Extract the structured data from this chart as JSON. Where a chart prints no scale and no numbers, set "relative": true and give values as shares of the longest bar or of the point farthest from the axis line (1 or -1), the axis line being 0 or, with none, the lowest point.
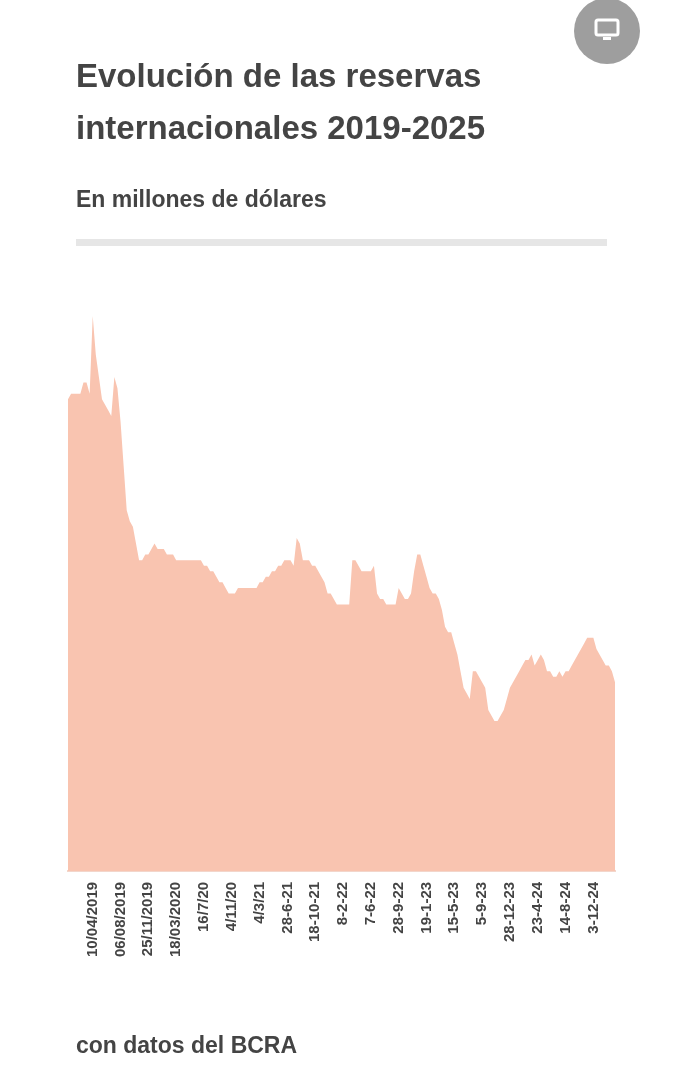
{
  "chart_data": {
    "type": "area",
    "title": "Evolución de las reservas internacionales 2019-2025",
    "subtitle": "En millones de dólares",
    "relative": true,
    "color": "#f9c4b0",
    "categories": [
      null,
      null,
      null,
      null,
      null,
      null,
      null,
      null,
      "10/04/2019",
      null,
      null,
      null,
      null,
      null,
      null,
      null,
      null,
      "06/08/2019",
      null,
      null,
      null,
      null,
      null,
      null,
      null,
      null,
      "25/11/2019",
      null,
      null,
      null,
      null,
      null,
      null,
      null,
      null,
      "18/03/2020",
      null,
      null,
      null,
      null,
      null,
      null,
      null,
      null,
      "16/7/20",
      null,
      null,
      null,
      null,
      null,
      null,
      null,
      null,
      "4/11/20",
      null,
      null,
      null,
      null,
      null,
      null,
      null,
      null,
      "4/3/21",
      null,
      null,
      null,
      null,
      null,
      null,
      null,
      null,
      "28-6-21",
      null,
      null,
      null,
      null,
      null,
      null,
      null,
      null,
      "18-10-21",
      null,
      null,
      null,
      null,
      null,
      null,
      null,
      null,
      "8-2-22",
      null,
      null,
      null,
      null,
      null,
      null,
      null,
      null,
      "7-6-22",
      null,
      null,
      null,
      null,
      null,
      null,
      null,
      null,
      "28-9-22",
      null,
      null,
      null,
      null,
      null,
      null,
      null,
      null,
      "19-1-23",
      null,
      null,
      null,
      null,
      null,
      null,
      null,
      null,
      "15-5-23",
      null,
      null,
      null,
      null,
      null,
      null,
      null,
      null,
      "5-9-23",
      null,
      null,
      null,
      null,
      null,
      null,
      null,
      null,
      "28-12-23",
      null,
      null,
      null,
      null,
      null,
      null,
      null,
      null,
      "23-4-24",
      null,
      null,
      null,
      null,
      null,
      null,
      null,
      null,
      "14-8-24",
      null,
      null,
      null,
      null,
      null,
      null,
      null,
      null,
      "3-12-24",
      null,
      null,
      null,
      null,
      null,
      null,
      null
    ],
    "values": [
      0.85,
      0.86,
      0.86,
      0.86,
      0.86,
      0.88,
      0.88,
      0.86,
      1.0,
      0.93,
      0.89,
      0.85,
      0.84,
      0.83,
      0.82,
      0.89,
      0.87,
      0.81,
      0.73,
      0.65,
      0.63,
      0.62,
      0.59,
      0.56,
      0.56,
      0.57,
      0.57,
      0.58,
      0.59,
      0.58,
      0.58,
      0.58,
      0.57,
      0.57,
      0.57,
      0.56,
      0.56,
      0.56,
      0.56,
      0.56,
      0.56,
      0.56,
      0.56,
      0.56,
      0.55,
      0.55,
      0.54,
      0.54,
      0.53,
      0.52,
      0.52,
      0.51,
      0.5,
      0.5,
      0.5,
      0.51,
      0.51,
      0.51,
      0.51,
      0.51,
      0.51,
      0.51,
      0.52,
      0.52,
      0.53,
      0.53,
      0.54,
      0.54,
      0.55,
      0.55,
      0.56,
      0.56,
      0.56,
      0.55,
      0.6,
      0.59,
      0.56,
      0.56,
      0.56,
      0.55,
      0.55,
      0.54,
      0.53,
      0.52,
      0.5,
      0.5,
      0.49,
      0.48,
      0.48,
      0.48,
      0.48,
      0.48,
      0.56,
      0.56,
      0.55,
      0.54,
      0.54,
      0.54,
      0.54,
      0.55,
      0.5,
      0.49,
      0.49,
      0.48,
      0.48,
      0.48,
      0.48,
      0.51,
      0.5,
      0.49,
      0.49,
      0.5,
      0.54,
      0.57,
      0.57,
      0.55,
      0.53,
      0.51,
      0.5,
      0.5,
      0.49,
      0.47,
      0.44,
      0.43,
      0.43,
      0.41,
      0.39,
      0.36,
      0.33,
      0.32,
      0.31,
      0.36,
      0.36,
      0.35,
      0.34,
      0.33,
      0.29,
      0.28,
      0.27,
      0.27,
      0.28,
      0.29,
      0.31,
      0.33,
      0.34,
      0.35,
      0.36,
      0.37,
      0.38,
      0.38,
      0.39,
      0.37,
      0.38,
      0.39,
      0.38,
      0.36,
      0.36,
      0.35,
      0.35,
      0.36,
      0.35,
      0.36,
      0.36,
      0.37,
      0.38,
      0.39,
      0.4,
      0.41,
      0.42,
      0.42,
      0.42,
      0.4,
      0.39,
      0.38,
      0.37,
      0.37,
      0.36,
      0.34
    ],
    "annotations": [
      "con datos del BCRA"
    ]
  }
}
